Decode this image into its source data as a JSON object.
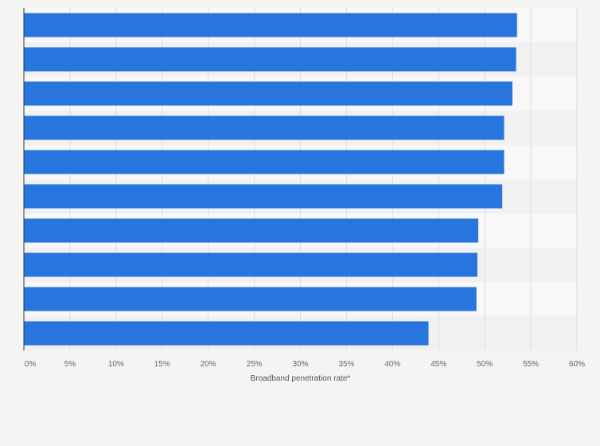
{
  "chart_data": {
    "type": "bar",
    "orientation": "horizontal",
    "categories": [
      "",
      "",
      "",
      "",
      "",
      "",
      "",
      "",
      "",
      ""
    ],
    "values": [
      53.5,
      53.4,
      53.0,
      52.1,
      52.1,
      51.9,
      49.3,
      49.2,
      49.1,
      43.9
    ],
    "title": "",
    "xlabel": "Broadband penetration rate*",
    "ylabel": "",
    "xlim": [
      0,
      60
    ],
    "x_ticks": [
      0,
      5,
      10,
      15,
      20,
      25,
      30,
      35,
      40,
      45,
      50,
      55,
      60
    ],
    "x_tick_labels": [
      "0%",
      "5%",
      "10%",
      "15%",
      "20%",
      "25%",
      "30%",
      "35%",
      "40%",
      "45%",
      "50%",
      "55%",
      "60%"
    ],
    "grid": true,
    "legend": "none",
    "colors": {
      "bar": "#2775dd",
      "background": "#f4f4f4",
      "band_light": "#f8f8f8",
      "band_dark": "#f1f1f1",
      "grid": "#dddddd",
      "axis": "#333333"
    }
  }
}
